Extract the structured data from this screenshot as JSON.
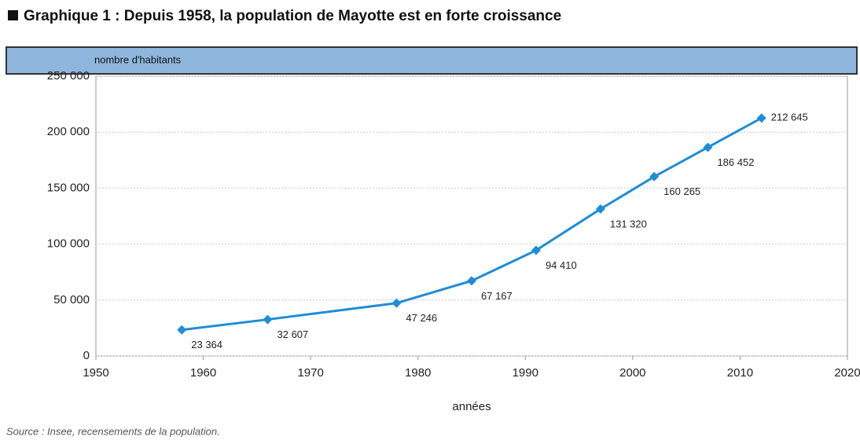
{
  "chart_data": {
    "type": "line",
    "title": "Graphique 1 : Depuis 1958, la population de Mayotte est en forte croissance",
    "y_label": "nombre d'habitants",
    "x_label": "années",
    "source": "Source : Insee, recensements de la population.",
    "x": [
      1958,
      1966,
      1978,
      1985,
      1991,
      1997,
      2002,
      2007,
      2012
    ],
    "values": [
      23364,
      32607,
      47246,
      67167,
      94410,
      131320,
      160265,
      186452,
      212645
    ],
    "value_labels": [
      "23 364",
      "32 607",
      "47 246",
      "67 167",
      "94 410",
      "131 320",
      "160 265",
      "186 452",
      "212 645"
    ],
    "color": "#1f8dd6",
    "xlim": [
      1950,
      2020
    ],
    "xticks": [
      1950,
      1960,
      1970,
      1980,
      1990,
      2000,
      2010,
      2020
    ],
    "ylim": [
      0,
      250000
    ],
    "yticks": [
      0,
      {
        "value": 50000,
        "label": "50 000"
      },
      {
        "value": 100000,
        "label": "100 000"
      },
      {
        "value": 150000,
        "label": "150 000"
      },
      {
        "value": 200000,
        "label": "200 000"
      },
      {
        "value": 250000,
        "label": "250 000"
      }
    ],
    "grid": true
  }
}
